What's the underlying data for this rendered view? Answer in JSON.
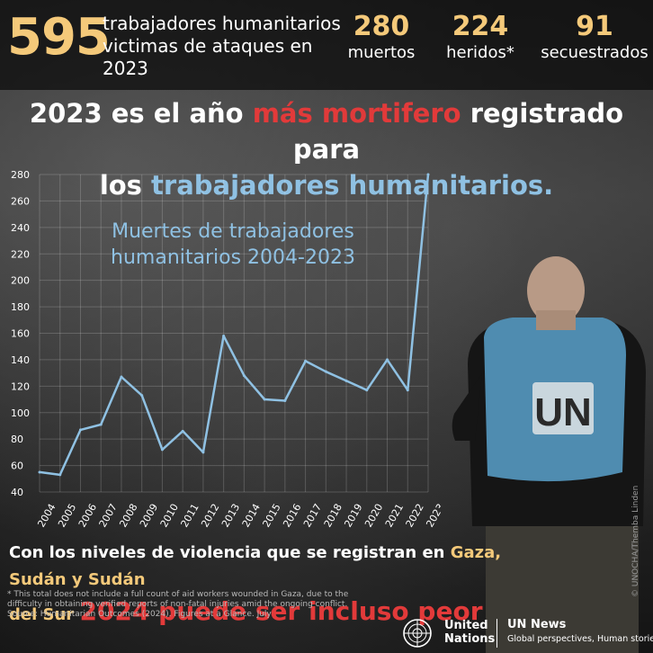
{
  "header": {
    "big_number": "595",
    "big_label": "trabajadores humanitarios victimas de ataques en 2023",
    "stats": [
      {
        "number": "280",
        "label": "muertos"
      },
      {
        "number": "224",
        "label": "heridos*"
      },
      {
        "number": "91",
        "label": "secuestrados"
      }
    ]
  },
  "headline": {
    "line1_part1": "2023 es el año ",
    "line1_highlight": "más mortifero",
    "line1_part2": " registrado para",
    "line2_part1": "los ",
    "line2_highlight": "trabajadores humanitarios."
  },
  "colors": {
    "accent_yellow": "#f4c97a",
    "accent_red": "#e23a3a",
    "accent_blue": "#8fc1e3"
  },
  "chart_data": {
    "type": "line",
    "title": "Muertes de trabajadores humanitarios 2004-2023",
    "x": [
      "2004",
      "2005",
      "2006",
      "2007",
      "2008",
      "2009",
      "2010",
      "2011",
      "2012",
      "2013",
      "2014",
      "2015",
      "2016",
      "2017",
      "2018",
      "2019",
      "2020",
      "2021",
      "2022",
      "2023"
    ],
    "series": [
      {
        "values": [
          55,
          53,
          87,
          91,
          127,
          113,
          72,
          86,
          70,
          158,
          128,
          110,
          109,
          139,
          131,
          124,
          117,
          140,
          117,
          280
        ]
      }
    ],
    "yticks": [
      40,
      60,
      80,
      100,
      120,
      140,
      160,
      180,
      200,
      220,
      240,
      260,
      280
    ],
    "ylim": [
      40,
      280
    ],
    "grid": true,
    "line_color": "#8fc1e3"
  },
  "bottom": {
    "line1_part1": "Con los niveles de violencia que se registran en ",
    "line1_highlight": "Gaza, Sudán y Sudán",
    "line2_highlight": "del Sur",
    "line2_part2": "2024 puede ser incluso peor"
  },
  "footnote": {
    "note": "* This total does not include a full count of aid workers wounded in Gaza, due to the difficulty in obtaining verified reports of non-fatal injuries amid the ongoing conflict.",
    "source": "Source: Humanitarian Outcomes (2024). Figures at a Glance. July"
  },
  "logos": {
    "un_name": "United Nations",
    "news_title": "UN News",
    "news_tagline": "Global perspectives, Human stories"
  },
  "vest_label": "UN",
  "photo_credit": "© UNOCHA/Themba Linden",
  "icons": {
    "un_emblem": "un-emblem-icon"
  }
}
